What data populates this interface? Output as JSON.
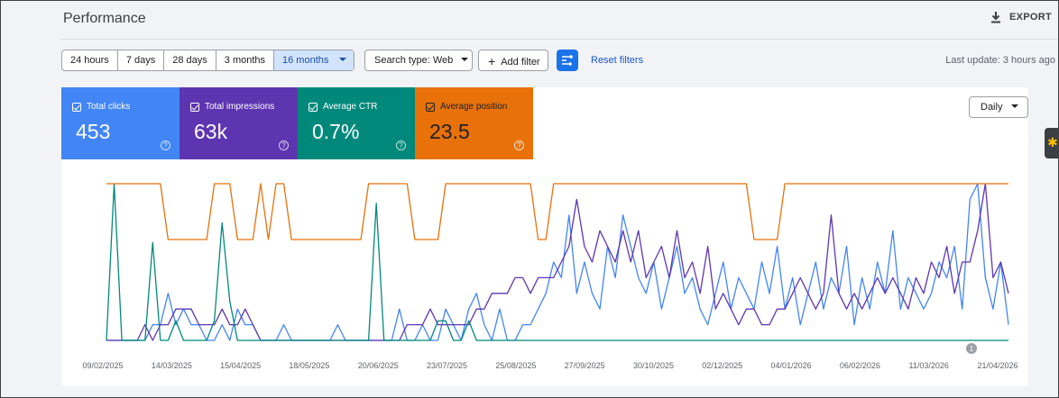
{
  "header": {
    "title": "Performance",
    "export_label": "EXPORT"
  },
  "date_range": {
    "options": [
      {
        "label": "24 hours",
        "selected": false
      },
      {
        "label": "7 days",
        "selected": false
      },
      {
        "label": "28 days",
        "selected": false
      },
      {
        "label": "3 months",
        "selected": false
      },
      {
        "label": "16 months",
        "selected": true
      }
    ]
  },
  "filters": {
    "search_type": "Search type: Web",
    "add_filter": "Add filter",
    "reset": "Reset filters",
    "last_update": "Last update: 3 hours ago"
  },
  "metrics": [
    {
      "label": "Total clicks",
      "value": "453",
      "color": "#4285f4",
      "checked": true
    },
    {
      "label": "Total impressions",
      "value": "63k",
      "color": "#5e35b1",
      "checked": true
    },
    {
      "label": "Average CTR",
      "value": "0.7%",
      "color": "#00897b",
      "checked": true
    },
    {
      "label": "Average position",
      "value": "23.5",
      "color": "#e8710a",
      "checked": true
    }
  ],
  "granularity": "Daily",
  "help_glyph": "?",
  "annotation_marker": "1",
  "chart_data": {
    "type": "line",
    "x_tick_labels": [
      "09/02/2025",
      "14/03/2025",
      "15/04/2025",
      "18/05/2025",
      "20/06/2025",
      "23/07/2025",
      "25/08/2025",
      "27/09/2025",
      "30/10/2025",
      "02/12/2025",
      "04/01/2026",
      "06/02/2026",
      "11/03/2026",
      "21/04/2026"
    ],
    "x_range": [
      "09/02/2025",
      "21/04/2026"
    ],
    "y_axis_visible": false,
    "grid": false,
    "series": [
      {
        "color": "#4285f4",
        "values": [
          0,
          0,
          0,
          0,
          0,
          0,
          1,
          1,
          3,
          1,
          2,
          1,
          1,
          0,
          0,
          1,
          0,
          2,
          1,
          1,
          0,
          0,
          0,
          1,
          0,
          0,
          0,
          0,
          0,
          0,
          1,
          0,
          0,
          0,
          0,
          0,
          0,
          0,
          2,
          0,
          0,
          1,
          0,
          0,
          2,
          1,
          0,
          2,
          3,
          1,
          0,
          2,
          0,
          0,
          1,
          1,
          2,
          3,
          5,
          4,
          8,
          3,
          5,
          3,
          2,
          6,
          4,
          8,
          6,
          4,
          3,
          5,
          2,
          4,
          6,
          3,
          4,
          2,
          1,
          3,
          5,
          2,
          4,
          3,
          2,
          5,
          3,
          6,
          2,
          4,
          1,
          3,
          5,
          2,
          4,
          3,
          6,
          1,
          4,
          2,
          5,
          3,
          7,
          2,
          4,
          3,
          2,
          3,
          5,
          4,
          6,
          2,
          9,
          10,
          4,
          2,
          5,
          1
        ]
      },
      {
        "color": "#5e35b1",
        "values": [
          0,
          0,
          0,
          0,
          0,
          1,
          0,
          1,
          1,
          2,
          2,
          2,
          1,
          1,
          1,
          2,
          1,
          1,
          2,
          1,
          0,
          0,
          0,
          0,
          0,
          0,
          0,
          0,
          0,
          0,
          0,
          0,
          0,
          0,
          0,
          0,
          0,
          0,
          0,
          1,
          1,
          1,
          2,
          1,
          1,
          1,
          1,
          1,
          2,
          2,
          3,
          3,
          3,
          4,
          4,
          3,
          4,
          4,
          4,
          5,
          6,
          9,
          6,
          5,
          7,
          6,
          5,
          7,
          5,
          7,
          4,
          5,
          6,
          4,
          7,
          4,
          5,
          3,
          6,
          2,
          3,
          2,
          1,
          2,
          2,
          1,
          1,
          2,
          2,
          3,
          4,
          3,
          2,
          3,
          8,
          3,
          2,
          3,
          2,
          3,
          4,
          3,
          4,
          3,
          2,
          4,
          3,
          5,
          4,
          6,
          3,
          5,
          5,
          7,
          10,
          4,
          5,
          3
        ]
      },
      {
        "color": "#00897b",
        "values": [
          0,
          8,
          0,
          0,
          0,
          0,
          5,
          0,
          0,
          1,
          0,
          0,
          0,
          0,
          1,
          6,
          2,
          0,
          0,
          0,
          0,
          0,
          0,
          0,
          0,
          0,
          0,
          0,
          0,
          0,
          0,
          0,
          0,
          0,
          0,
          7,
          0,
          0,
          0,
          0,
          0,
          0,
          0,
          1,
          1,
          0,
          0,
          1,
          0,
          0,
          0,
          0,
          0,
          0,
          0,
          0,
          0,
          0,
          0,
          0,
          0,
          0,
          0,
          0,
          0,
          0,
          0,
          0,
          0,
          0,
          0,
          0,
          0,
          0,
          0,
          0,
          0,
          0,
          0,
          0,
          0,
          0,
          0,
          0,
          0,
          0,
          0,
          0,
          0,
          0,
          0,
          0,
          0,
          0,
          0,
          0,
          0,
          0,
          0,
          0,
          0,
          0,
          0,
          0,
          0,
          0,
          0,
          0,
          0,
          0,
          0,
          0,
          0,
          0,
          0,
          0,
          0,
          0
        ]
      },
      {
        "color": "#e8710a",
        "values": [
          1,
          1,
          1,
          1,
          1,
          1,
          1,
          1,
          2,
          2,
          2,
          2,
          2,
          2,
          1,
          1,
          1,
          2,
          2,
          2,
          1,
          2,
          1,
          1,
          2,
          2,
          2,
          2,
          2,
          2,
          2,
          2,
          2,
          2,
          1,
          1,
          1,
          1,
          1,
          1,
          2,
          2,
          2,
          2,
          1,
          1,
          1,
          1,
          1,
          1,
          1,
          1,
          1,
          1,
          1,
          1,
          2,
          2,
          1,
          1,
          1,
          1,
          1,
          1,
          1,
          1,
          1,
          1,
          1,
          1,
          1,
          1,
          1,
          1,
          1,
          1,
          1,
          1,
          1,
          1,
          1,
          1,
          1,
          1,
          2,
          2,
          2,
          2,
          1,
          1,
          1,
          1,
          1,
          1,
          1,
          1,
          1,
          1,
          1,
          1,
          1,
          1,
          1,
          1,
          1,
          1,
          1,
          1,
          1,
          1,
          1,
          1,
          1,
          1,
          1,
          1,
          1,
          1
        ]
      }
    ]
  }
}
